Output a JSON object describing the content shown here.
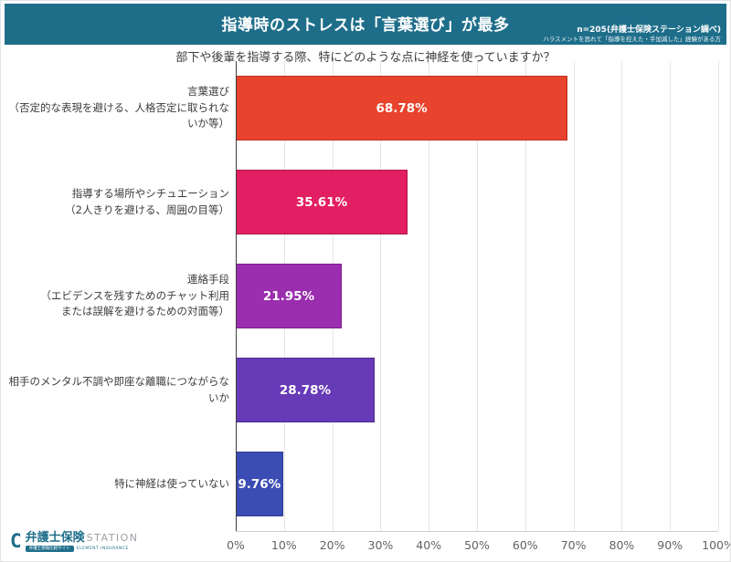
{
  "header": {
    "title": "指導時のストレスは「言葉選び」が最多",
    "note_line1": "n=205(弁護士保険ステーション調べ)",
    "note_line2": "ハラスメントを恐れて「指導を控えた・手加減した」経験がある方",
    "bg_color": "#1e6e8a"
  },
  "chart_data": {
    "type": "bar",
    "orientation": "horizontal",
    "title": "部下や後輩を指導する際、特にどのような点に神経を使っていますか？",
    "categories": [
      [
        "言葉選び",
        "（否定的な表現を避ける、人格否定に取られないか等）"
      ],
      [
        "指導する場所やシチュエーション",
        "（2人きりを避ける、周囲の目等）"
      ],
      [
        "連絡手段",
        "（エビデンスを残すためのチャット利用",
        "または誤解を避けるための対面等）"
      ],
      [
        "相手のメンタル不調や即座な離職につながらないか"
      ],
      [
        "特に神経は使っていない"
      ]
    ],
    "values": [
      68.78,
      35.61,
      21.95,
      28.78,
      9.76
    ],
    "value_labels": [
      "68.78%",
      "35.61%",
      "21.95%",
      "28.78%",
      "9.76%"
    ],
    "bar_colors": [
      "#e8432c",
      "#e21f62",
      "#9b2daf",
      "#673ab7",
      "#3b4db4"
    ],
    "bar_border_colors": [
      "#bd3020",
      "#b01349",
      "#781f88",
      "#4d2a8e",
      "#2c3a8c"
    ],
    "x_ticks": [
      "0%",
      "10%",
      "20%",
      "30%",
      "40%",
      "50%",
      "60%",
      "70%",
      "80%",
      "90%",
      "100%"
    ],
    "xlim": [
      0,
      100
    ],
    "grid": true,
    "legend": null
  },
  "footer": {
    "logo_icon": "chat-bubble-c-icon",
    "logo_main": "弁護士保険",
    "logo_station": "STATION",
    "badge": "弁護士保険比較サイト",
    "badge_sub": "ELEMENT INSURANCE",
    "brand_color": "#1e6e8a"
  }
}
